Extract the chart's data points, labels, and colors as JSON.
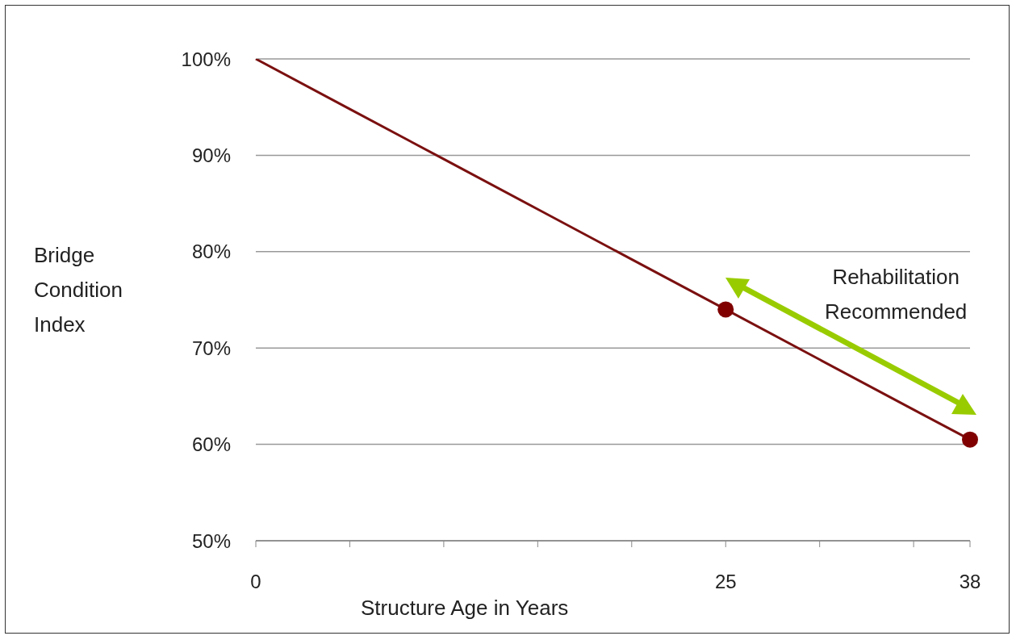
{
  "chart_data": {
    "type": "line",
    "xlabel": "Structure Age in Years",
    "ylabel": "Bridge Condition Index",
    "xlim": [
      0,
      38
    ],
    "xticks": [
      0,
      {
        "value": 5,
        "label": null
      },
      {
        "value": 10,
        "label": null
      },
      {
        "value": 15,
        "label": null
      },
      {
        "value": 20,
        "label": null
      },
      25,
      {
        "value": 30,
        "label": null
      },
      {
        "value": 35,
        "label": null
      },
      38
    ],
    "ylim": [
      50,
      100
    ],
    "yticks": [
      {
        "value": 50,
        "label": "50%"
      },
      {
        "value": 60,
        "label": "60%"
      },
      {
        "value": 70,
        "label": "70%"
      },
      {
        "value": 80,
        "label": "80%"
      },
      {
        "value": 90,
        "label": "90%"
      },
      {
        "value": 100,
        "label": "100%"
      }
    ],
    "grid": "y",
    "line_style": "solid",
    "series": [
      {
        "marker": "none",
        "color": "#7b1010",
        "x": [
          0,
          5,
          10,
          15,
          20,
          25,
          30,
          35,
          38
        ],
        "values": [
          100,
          94.8,
          89.6,
          84.4,
          79.2,
          74,
          68.8,
          63.6,
          60.5
        ]
      },
      {
        "type": "scatter",
        "marker": "circle",
        "color": "#800000",
        "x": [
          25,
          38
        ],
        "values": [
          74,
          60.5
        ]
      }
    ],
    "annotations": [
      "Rehabilitation Recommended"
    ]
  }
}
